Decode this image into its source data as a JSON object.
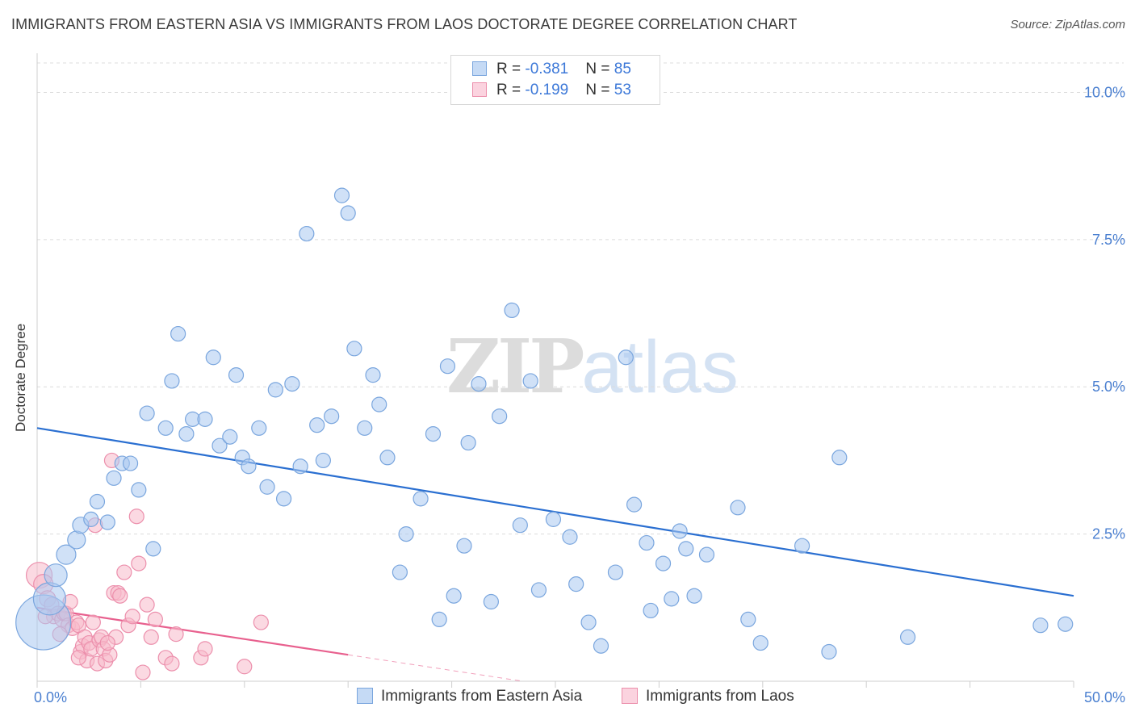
{
  "title": "IMMIGRANTS FROM EASTERN ASIA VS IMMIGRANTS FROM LAOS DOCTORATE DEGREE CORRELATION CHART",
  "source": "Source: ZipAtlas.com",
  "watermark": {
    "zip": "ZIP",
    "atlas": "atlas"
  },
  "legend": {
    "rows": [
      {
        "r_label": "R = ",
        "r_value": "-0.381",
        "n_label": "N = ",
        "n_value": "85",
        "color": "#a9c8f0"
      },
      {
        "r_label": "R = ",
        "r_value": "-0.199",
        "n_label": "N = ",
        "n_value": "53",
        "color": "#f7b9cb"
      }
    ]
  },
  "bottom_legend": [
    "Immigrants from Eastern Asia",
    "Immigrants from Laos"
  ],
  "chart_data": {
    "type": "scatter",
    "ylabel": "Doctorate Degree",
    "xlim": [
      0,
      50
    ],
    "ylim": [
      0,
      10
    ],
    "x_tick_labels": [
      {
        "value": 0,
        "label": "0.0%"
      },
      {
        "value": 50,
        "label": "50.0%"
      }
    ],
    "y_tick_labels": [
      {
        "value": 2.5,
        "label": "2.5%"
      },
      {
        "value": 5.0,
        "label": "5.0%"
      },
      {
        "value": 7.5,
        "label": "7.5%"
      },
      {
        "value": 10.0,
        "label": "10.0%"
      }
    ],
    "colors": {
      "blue_fill": "#a9c8f0",
      "blue_stroke": "#7aa6de",
      "blue_line": "#2a6fd1",
      "pink_fill": "#f7b9cb",
      "pink_stroke": "#ec8fac",
      "pink_line": "#e8608e"
    },
    "series": [
      {
        "name": "Immigrants from Eastern Asia",
        "trend": {
          "x": [
            0,
            50
          ],
          "y": [
            4.3,
            1.45
          ]
        },
        "points": [
          [
            0.3,
            1.0,
            34
          ],
          [
            0.6,
            1.4,
            20
          ],
          [
            0.9,
            1.8,
            14
          ],
          [
            1.4,
            2.15,
            12
          ],
          [
            1.9,
            2.4,
            11
          ],
          [
            2.1,
            2.65,
            10
          ],
          [
            2.6,
            2.75,
            9
          ],
          [
            2.9,
            3.05,
            9
          ],
          [
            3.4,
            2.7,
            9
          ],
          [
            3.7,
            3.45,
            9
          ],
          [
            4.1,
            3.7,
            9
          ],
          [
            4.5,
            3.7,
            9
          ],
          [
            4.9,
            3.25,
            9
          ],
          [
            5.3,
            4.55,
            9
          ],
          [
            5.6,
            2.25,
            9
          ],
          [
            6.2,
            4.3,
            9
          ],
          [
            6.5,
            5.1,
            9
          ],
          [
            6.8,
            5.9,
            9
          ],
          [
            7.2,
            4.2,
            9
          ],
          [
            7.5,
            4.45,
            9
          ],
          [
            8.1,
            4.45,
            9
          ],
          [
            8.5,
            5.5,
            9
          ],
          [
            8.8,
            4.0,
            9
          ],
          [
            9.3,
            4.15,
            9
          ],
          [
            9.6,
            5.2,
            9
          ],
          [
            9.9,
            3.8,
            9
          ],
          [
            10.2,
            3.65,
            9
          ],
          [
            10.7,
            4.3,
            9
          ],
          [
            11.1,
            3.3,
            9
          ],
          [
            11.5,
            4.95,
            9
          ],
          [
            11.9,
            3.1,
            9
          ],
          [
            12.3,
            5.05,
            9
          ],
          [
            12.7,
            3.65,
            9
          ],
          [
            13.0,
            7.6,
            9
          ],
          [
            13.5,
            4.35,
            9
          ],
          [
            13.8,
            3.75,
            9
          ],
          [
            14.2,
            4.5,
            9
          ],
          [
            14.7,
            8.25,
            9
          ],
          [
            15.0,
            7.95,
            9
          ],
          [
            15.3,
            5.65,
            9
          ],
          [
            15.8,
            4.3,
            9
          ],
          [
            16.2,
            5.2,
            9
          ],
          [
            16.5,
            4.7,
            9
          ],
          [
            16.9,
            3.8,
            9
          ],
          [
            17.5,
            1.85,
            9
          ],
          [
            17.8,
            2.5,
            9
          ],
          [
            18.5,
            3.1,
            9
          ],
          [
            19.1,
            4.2,
            9
          ],
          [
            19.4,
            1.05,
            9
          ],
          [
            19.8,
            5.35,
            9
          ],
          [
            20.1,
            1.45,
            9
          ],
          [
            20.6,
            2.3,
            9
          ],
          [
            20.8,
            4.05,
            9
          ],
          [
            21.3,
            5.05,
            9
          ],
          [
            21.9,
            1.35,
            9
          ],
          [
            22.3,
            4.5,
            9
          ],
          [
            22.9,
            6.3,
            9
          ],
          [
            23.3,
            2.65,
            9
          ],
          [
            23.8,
            5.1,
            9
          ],
          [
            24.2,
            1.55,
            9
          ],
          [
            24.9,
            2.75,
            9
          ],
          [
            25.7,
            2.45,
            9
          ],
          [
            26.0,
            1.65,
            9
          ],
          [
            26.6,
            1.0,
            9
          ],
          [
            27.2,
            0.6,
            9
          ],
          [
            27.9,
            1.85,
            9
          ],
          [
            28.4,
            5.5,
            9
          ],
          [
            28.8,
            3.0,
            9
          ],
          [
            29.4,
            2.35,
            9
          ],
          [
            29.6,
            1.2,
            9
          ],
          [
            30.2,
            2.0,
            9
          ],
          [
            30.6,
            1.4,
            9
          ],
          [
            31.0,
            2.55,
            9
          ],
          [
            31.3,
            2.25,
            9
          ],
          [
            31.7,
            1.45,
            9
          ],
          [
            32.3,
            2.15,
            9
          ],
          [
            33.8,
            2.95,
            9
          ],
          [
            34.3,
            1.05,
            9
          ],
          [
            34.9,
            0.65,
            9
          ],
          [
            36.9,
            2.3,
            9
          ],
          [
            38.2,
            0.5,
            9
          ],
          [
            38.7,
            3.8,
            9
          ],
          [
            42.0,
            0.75,
            9
          ],
          [
            48.4,
            0.95,
            9
          ],
          [
            49.6,
            0.97,
            9
          ]
        ]
      },
      {
        "name": "Immigrants from Laos",
        "trend": {
          "x": [
            0,
            15
          ],
          "y": [
            1.25,
            0.45
          ]
        },
        "trend_dashed": {
          "x": [
            15,
            30
          ],
          "y": [
            0.45,
            -0.35
          ]
        },
        "points": [
          [
            0.1,
            1.8,
            16
          ],
          [
            0.3,
            1.65,
            12
          ],
          [
            0.5,
            1.4,
            10
          ],
          [
            0.7,
            1.3,
            9
          ],
          [
            0.8,
            1.1,
            9
          ],
          [
            1.0,
            1.15,
            9
          ],
          [
            1.2,
            1.05,
            9
          ],
          [
            1.3,
            1.15,
            9
          ],
          [
            1.4,
            1.15,
            9
          ],
          [
            1.5,
            0.95,
            9
          ],
          [
            1.6,
            1.35,
            9
          ],
          [
            1.7,
            0.9,
            9
          ],
          [
            1.9,
            1.0,
            9
          ],
          [
            2.0,
            0.95,
            9
          ],
          [
            2.1,
            0.5,
            9
          ],
          [
            2.2,
            0.6,
            9
          ],
          [
            2.3,
            0.75,
            9
          ],
          [
            2.4,
            0.35,
            9
          ],
          [
            2.5,
            0.65,
            9
          ],
          [
            2.6,
            0.55,
            9
          ],
          [
            2.7,
            1.0,
            9
          ],
          [
            2.8,
            2.65,
            9
          ],
          [
            2.9,
            0.3,
            9
          ],
          [
            3.0,
            0.7,
            9
          ],
          [
            3.1,
            0.75,
            9
          ],
          [
            3.2,
            0.55,
            9
          ],
          [
            3.3,
            0.35,
            9
          ],
          [
            3.5,
            0.45,
            9
          ],
          [
            3.6,
            3.75,
            9
          ],
          [
            3.7,
            1.5,
            9
          ],
          [
            3.8,
            0.75,
            9
          ],
          [
            3.9,
            1.5,
            9
          ],
          [
            4.0,
            1.45,
            9
          ],
          [
            4.2,
            1.85,
            9
          ],
          [
            4.4,
            0.95,
            9
          ],
          [
            4.6,
            1.1,
            9
          ],
          [
            4.9,
            2.0,
            9
          ],
          [
            5.1,
            0.15,
            9
          ],
          [
            5.3,
            1.3,
            9
          ],
          [
            4.8,
            2.8,
            9
          ],
          [
            5.5,
            0.75,
            9
          ],
          [
            5.7,
            1.05,
            9
          ],
          [
            6.2,
            0.4,
            9
          ],
          [
            6.5,
            0.3,
            9
          ],
          [
            6.7,
            0.8,
            9
          ],
          [
            7.9,
            0.4,
            9
          ],
          [
            8.1,
            0.55,
            9
          ],
          [
            10.0,
            0.25,
            9
          ],
          [
            10.8,
            1.0,
            9
          ],
          [
            1.1,
            0.8,
            9
          ],
          [
            0.4,
            1.1,
            9
          ],
          [
            2.0,
            0.4,
            9
          ],
          [
            3.4,
            0.65,
            9
          ]
        ]
      }
    ]
  }
}
